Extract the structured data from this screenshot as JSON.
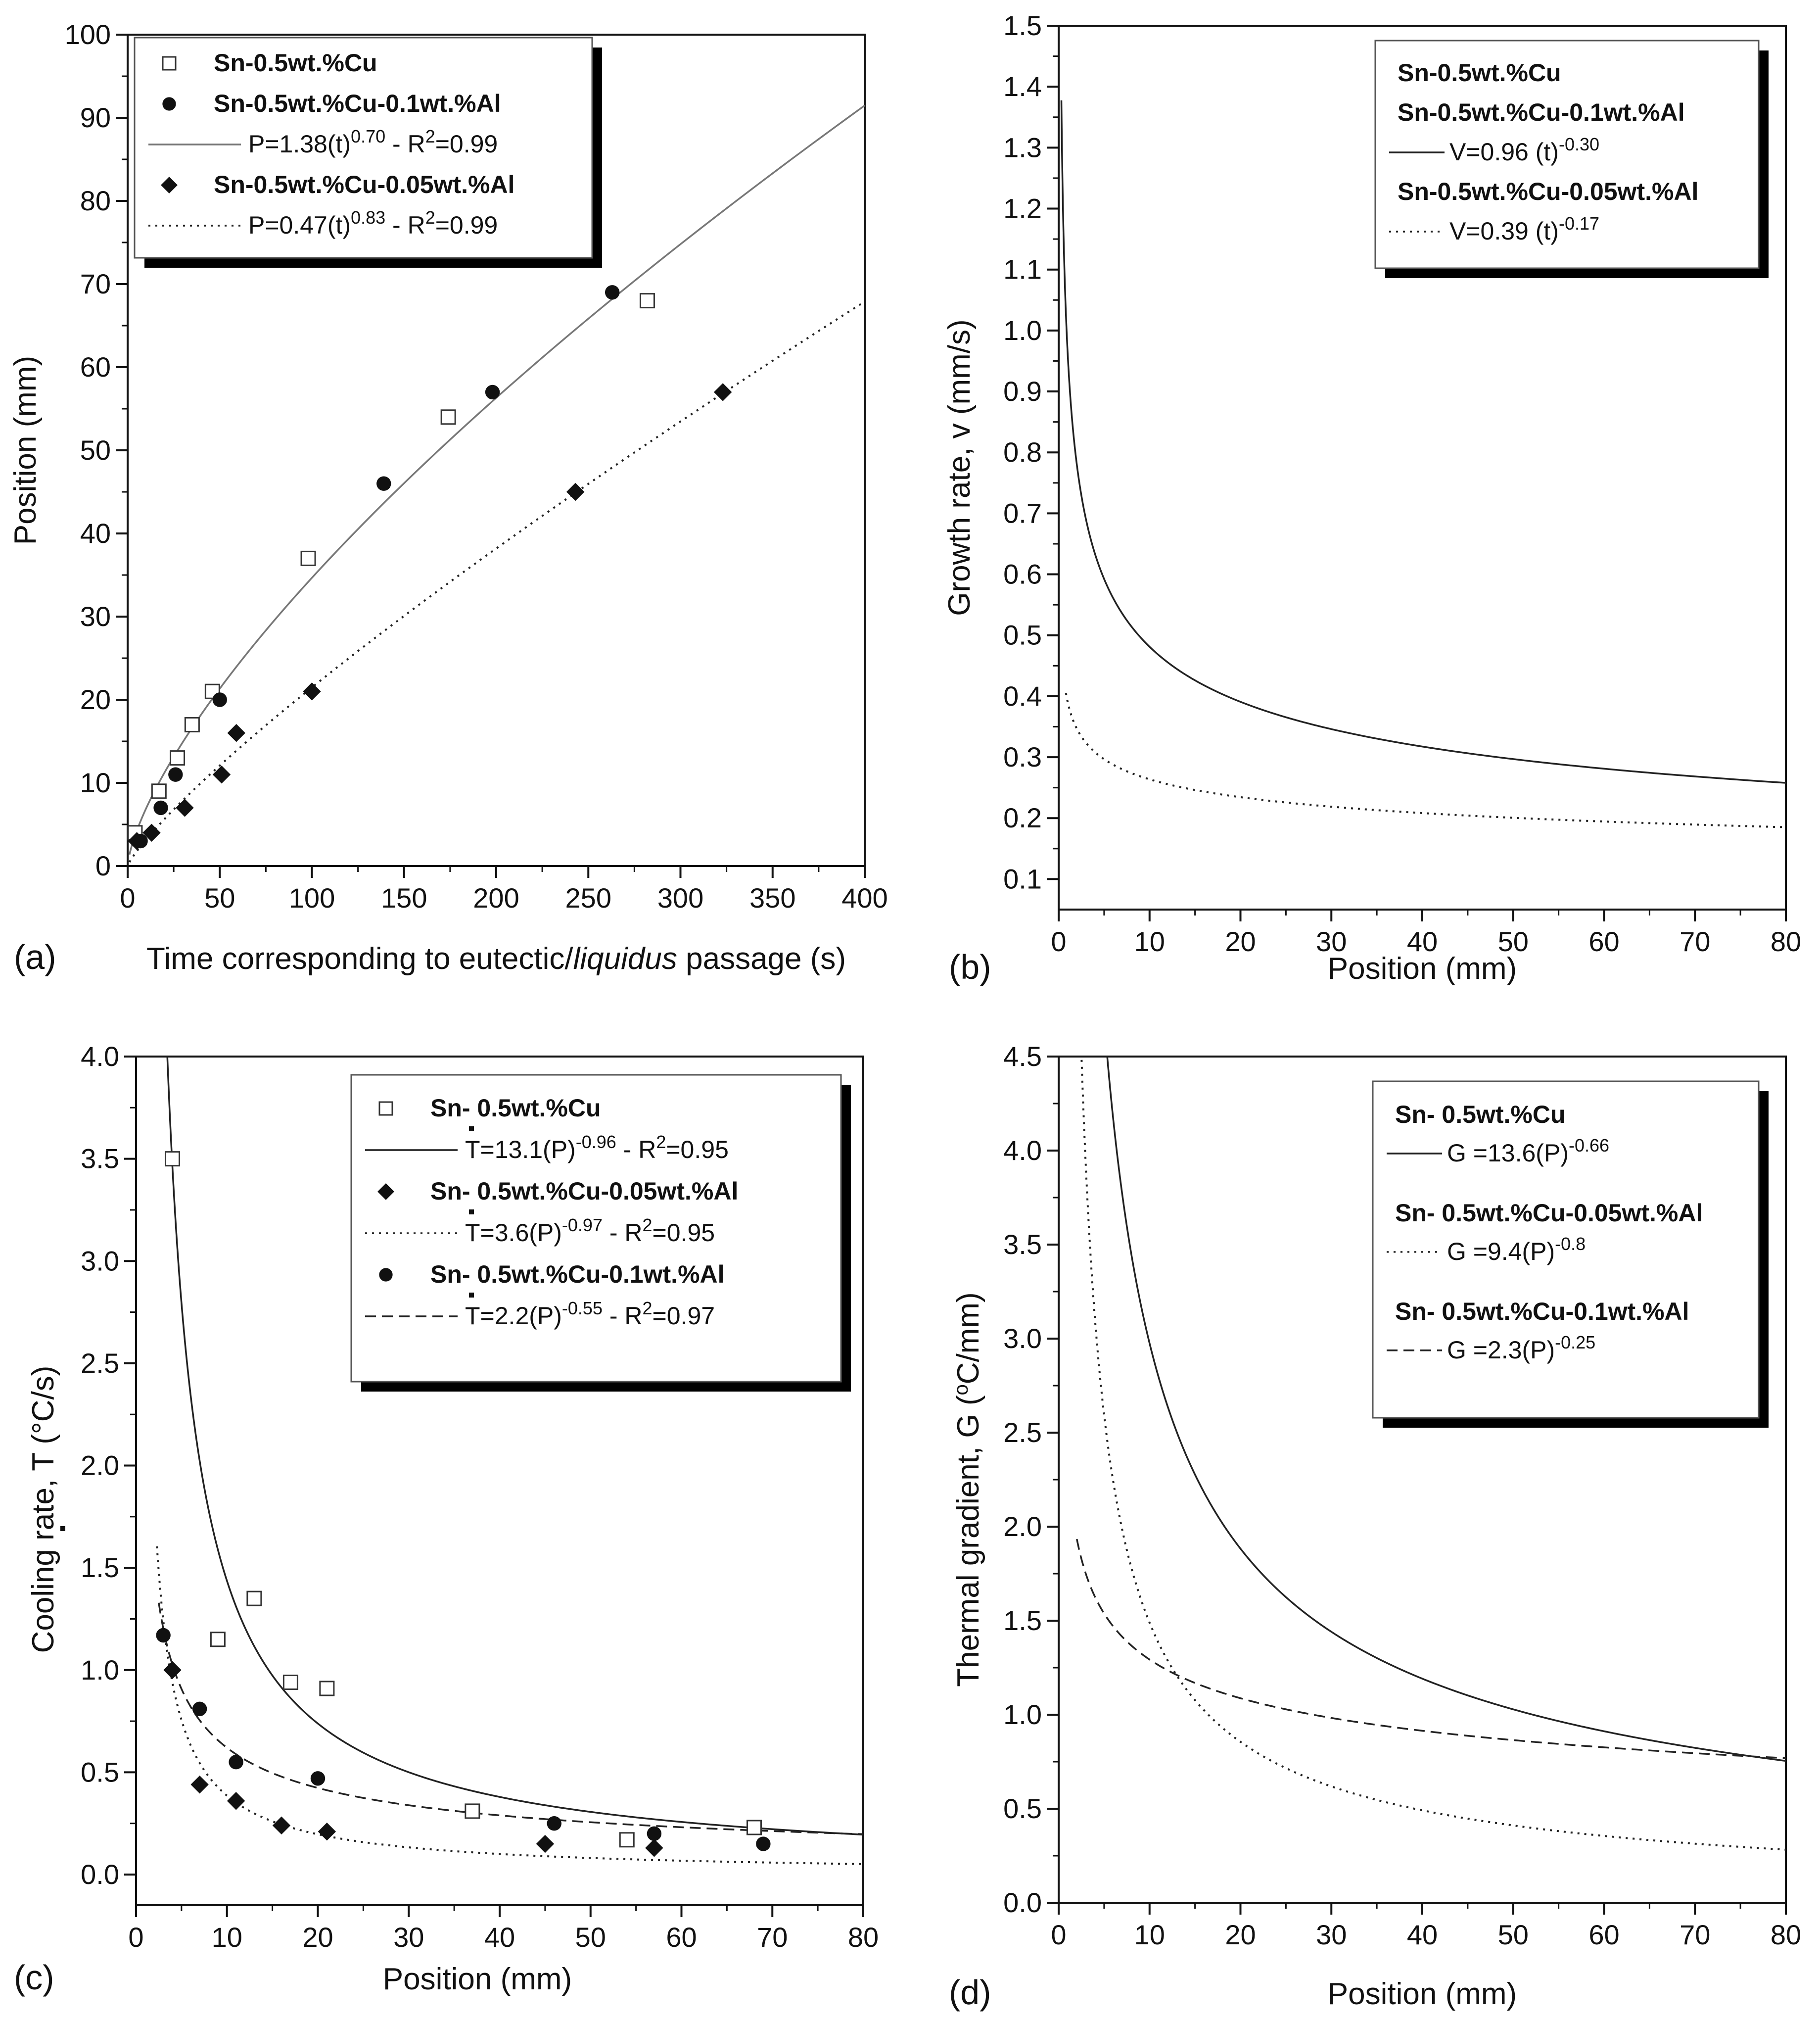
{
  "chart_data": [
    {
      "panel": "(a)",
      "type": "scatter",
      "xlabel_parts": [
        "Time corresponding to eutectic/",
        "liquidus",
        " passage (s)"
      ],
      "ylabel": "Position (mm)",
      "xlim": [
        0,
        400
      ],
      "ylim": [
        0,
        100
      ],
      "xticks": [
        "0",
        "50",
        "100",
        "150",
        "200",
        "250",
        "300",
        "350",
        "400"
      ],
      "yticks": [
        "0",
        "10",
        "20",
        "30",
        "40",
        "50",
        "60",
        "70",
        "80",
        "90",
        "100"
      ],
      "series": [
        {
          "name": "Sn-0.5wt.%Cu",
          "marker": "open-square",
          "x": [
            4,
            17,
            27,
            35,
            46,
            98,
            174,
            282
          ],
          "y": [
            4,
            9,
            13,
            17,
            21,
            37,
            54,
            68
          ]
        },
        {
          "name": "Sn-0.5wt.%Cu-0.1wt.%Al",
          "marker": "filled-circle",
          "x": [
            7,
            18,
            26,
            50,
            139,
            198,
            263
          ],
          "y": [
            3,
            7,
            11,
            20,
            46,
            57,
            69
          ]
        },
        {
          "name": "Sn-0.5wt.%Cu-0.05wt.%Al",
          "marker": "filled-diamond",
          "x": [
            5,
            13,
            31,
            51,
            59,
            100,
            243,
            323
          ],
          "y": [
            3,
            4,
            7,
            11,
            16,
            21,
            45,
            57
          ]
        }
      ],
      "fits": [
        {
          "label": "P=1.38(t)^0.70 - R^2=0.99",
          "coef": 1.38,
          "exp": 0.7,
          "style": "solid",
          "color": "#777777",
          "range": [
            1,
            400
          ]
        },
        {
          "label": "P=0.47(t)^0.83 - R^2=0.99",
          "coef": 0.47,
          "exp": 0.83,
          "style": "dotted",
          "color": "#222222",
          "range": [
            1,
            400
          ]
        }
      ],
      "legend": [
        {
          "kind": "marker",
          "marker": "open-square",
          "text": "Sn-0.5wt.%Cu"
        },
        {
          "kind": "marker",
          "marker": "filled-circle",
          "text": "Sn-0.5wt.%Cu-0.1wt.%Al"
        },
        {
          "kind": "line",
          "style": "solid",
          "color": "#777777",
          "main": "P=1.38(t)",
          "sup": "0.70",
          "rest": " - R",
          "sup2": "2",
          "rest2": "=0.99"
        },
        {
          "kind": "marker",
          "marker": "filled-diamond",
          "text": "Sn-0.5wt.%Cu-0.05wt.%Al"
        },
        {
          "kind": "line",
          "style": "dotted",
          "color": "#222222",
          "main": "P=0.47(t)",
          "sup": "0.83",
          "rest": " - R",
          "sup2": "2",
          "rest2": "=0.99"
        }
      ],
      "legend_position": "top-left"
    },
    {
      "panel": "(b)",
      "type": "line",
      "xlabel": "Position (mm)",
      "ylabel": "Growth rate, v (mm/s)",
      "xlim": [
        0,
        80
      ],
      "ylim": [
        0.05,
        1.5
      ],
      "xticks": [
        "0",
        "10",
        "20",
        "30",
        "40",
        "50",
        "60",
        "70",
        "80"
      ],
      "yticks": [
        "0.1",
        "0.2",
        "0.3",
        "0.4",
        "0.5",
        "0.6",
        "0.7",
        "0.8",
        "0.9",
        "1.0",
        "1.1",
        "1.2",
        "1.3",
        "1.4",
        "1.5"
      ],
      "series": [],
      "fits": [
        {
          "label": "V=0.96 (t)^-0.30",
          "coef": 0.96,
          "exp": -0.3,
          "style": "solid",
          "color": "#222222",
          "range": [
            0.3,
            80
          ]
        },
        {
          "label": "V=0.39 (t)^-0.17",
          "coef": 0.39,
          "exp": -0.17,
          "style": "dotted",
          "color": "#222222",
          "range": [
            0.8,
            80
          ]
        }
      ],
      "legend": [
        {
          "kind": "text",
          "text": "Sn-0.5wt.%Cu"
        },
        {
          "kind": "text",
          "text": "Sn-0.5wt.%Cu-0.1wt.%Al"
        },
        {
          "kind": "line",
          "style": "solid",
          "color": "#222222",
          "main": "V=0.96 (t)",
          "sup": "-0.30"
        },
        {
          "kind": "text",
          "text": "Sn-0.5wt.%Cu-0.05wt.%Al"
        },
        {
          "kind": "line",
          "style": "dotted",
          "color": "#222222",
          "main": "V=0.39 (t)",
          "sup": "-0.17"
        }
      ],
      "legend_position": "top-right"
    },
    {
      "panel": "(c)",
      "type": "scatter",
      "xlabel": "Position (mm)",
      "ylabel_parts": [
        "Cooling rate, ",
        "T",
        " (°C/s)"
      ],
      "xlim": [
        0,
        80
      ],
      "ylim": [
        -0.15,
        4.0
      ],
      "xticks": [
        "0",
        "10",
        "20",
        "30",
        "40",
        "50",
        "60",
        "70",
        "80"
      ],
      "yticks": [
        "0.0",
        "0.5",
        "1.0",
        "1.5",
        "2.0",
        "2.5",
        "3.0",
        "3.5",
        "4.0"
      ],
      "series": [
        {
          "name": "Sn- 0.5wt.%Cu",
          "marker": "open-square",
          "x": [
            4,
            9,
            13,
            17,
            21,
            37,
            54,
            68
          ],
          "y": [
            3.5,
            1.15,
            1.35,
            0.94,
            0.91,
            0.31,
            0.17,
            0.23
          ]
        },
        {
          "name": "Sn- 0.5wt.%Cu-0.05wt.%Al",
          "marker": "filled-diamond",
          "x": [
            4,
            7,
            11,
            16,
            21,
            45,
            57
          ],
          "y": [
            1.0,
            0.44,
            0.36,
            0.24,
            0.21,
            0.15,
            0.13
          ]
        },
        {
          "name": "Sn- 0.5wt.%Cu-0.1wt.%Al",
          "marker": "filled-circle",
          "x": [
            3,
            7,
            11,
            20,
            46,
            57,
            69
          ],
          "y": [
            1.17,
            0.81,
            0.55,
            0.47,
            0.25,
            0.2,
            0.15
          ]
        }
      ],
      "fits": [
        {
          "label": "T=13.1(P)^-0.96 - R^2=0.95",
          "coef": 13.1,
          "exp": -0.96,
          "style": "solid",
          "color": "#222222",
          "range": [
            2.5,
            80
          ]
        },
        {
          "label": "T=3.6(P)^-0.97 - R^2=0.95",
          "coef": 3.6,
          "exp": -0.97,
          "style": "dotted",
          "color": "#222222",
          "range": [
            2.3,
            80
          ]
        },
        {
          "label": "T=2.2(P)^-0.55 - R^2=0.97",
          "coef": 2.2,
          "exp": -0.55,
          "style": "dashed",
          "color": "#222222",
          "range": [
            2.5,
            80
          ]
        }
      ],
      "legend": [
        {
          "kind": "marker",
          "marker": "open-square",
          "text": "Sn- 0.5wt.%Cu"
        },
        {
          "kind": "line",
          "style": "solid",
          "color": "#222222",
          "main": "T=13.1(P)",
          "sup": "-0.96",
          "rest": " - R",
          "sup2": "2",
          "rest2": "=0.95",
          "dot": true
        },
        {
          "kind": "marker",
          "marker": "filled-diamond",
          "text": "Sn- 0.5wt.%Cu-0.05wt.%Al"
        },
        {
          "kind": "line",
          "style": "dotted",
          "color": "#222222",
          "main": "T=3.6(P)",
          "sup": "-0.97",
          "rest": " - R",
          "sup2": "2",
          "rest2": "=0.95",
          "dot": true
        },
        {
          "kind": "marker",
          "marker": "filled-circle",
          "text": "Sn- 0.5wt.%Cu-0.1wt.%Al"
        },
        {
          "kind": "line",
          "style": "dashed",
          "color": "#222222",
          "main": "T=2.2(P)",
          "sup": "-0.55",
          "rest": " - R",
          "sup2": "2",
          "rest2": "=0.97",
          "dot": true
        }
      ],
      "legend_position": "top-right"
    },
    {
      "panel": "(d)",
      "type": "line",
      "xlabel": "Position (mm)",
      "ylabel_parts": [
        "Thermal gradient, G (",
        "o",
        "C/mm)"
      ],
      "xlim": [
        0,
        80
      ],
      "ylim": [
        0.0,
        4.5
      ],
      "xticks": [
        "0",
        "10",
        "20",
        "30",
        "40",
        "50",
        "60",
        "70",
        "80"
      ],
      "yticks": [
        "0.0",
        "0.5",
        "1.0",
        "1.5",
        "2.0",
        "2.5",
        "3.0",
        "3.5",
        "4.0",
        "4.5"
      ],
      "series": [],
      "fits": [
        {
          "label": "G=13.6(P)^-0.66",
          "coef": 13.6,
          "exp": -0.66,
          "style": "solid",
          "color": "#222222",
          "range": [
            5,
            80
          ]
        },
        {
          "label": "G=9.4(P)^-0.8",
          "coef": 9.4,
          "exp": -0.8,
          "style": "dotted",
          "color": "#222222",
          "range": [
            2.4,
            80
          ]
        },
        {
          "label": "G=2.3(P)^-0.25",
          "coef": 2.3,
          "exp": -0.25,
          "style": "dashed",
          "color": "#222222",
          "range": [
            2,
            80
          ]
        }
      ],
      "legend": [
        {
          "kind": "text",
          "text": "Sn- 0.5wt.%Cu"
        },
        {
          "kind": "line",
          "style": "solid",
          "color": "#222222",
          "main": "G =13.6(P)",
          "sup": "-0.66"
        },
        {
          "kind": "gap"
        },
        {
          "kind": "text",
          "text": "Sn- 0.5wt.%Cu-0.05wt.%Al"
        },
        {
          "kind": "line",
          "style": "dotted",
          "color": "#222222",
          "main": "G =9.4(P)",
          "sup": "-0.8"
        },
        {
          "kind": "gap"
        },
        {
          "kind": "text",
          "text": "Sn- 0.5wt.%Cu-0.1wt.%Al"
        },
        {
          "kind": "line",
          "style": "dashed",
          "color": "#222222",
          "main": "G =2.3(P)",
          "sup": "-0.25"
        }
      ],
      "legend_position": "top-right"
    }
  ]
}
